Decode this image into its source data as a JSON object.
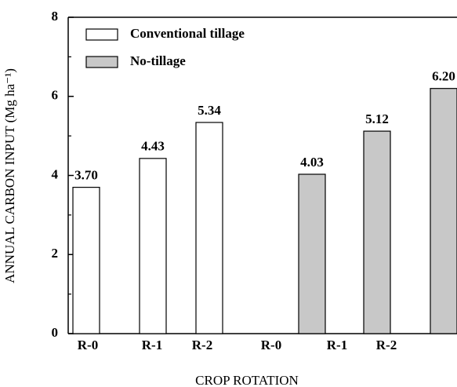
{
  "chart_data": {
    "type": "bar",
    "ylabel": "ANNUAL CARBON INPUT (Mg ha⁻¹)",
    "xlabel": "CROP ROTATION",
    "categories": [
      "R-0",
      "R-1",
      "R-2",
      "R-0",
      "R-1",
      "R-2"
    ],
    "series": [
      {
        "name": "Conventional tillage",
        "color": "#ffffff",
        "values": [
          3.7,
          4.43,
          5.34,
          null,
          null,
          null
        ],
        "value_labels": [
          "3.70",
          "4.43",
          "5.34",
          null,
          null,
          null
        ]
      },
      {
        "name": "No-tillage",
        "color": "#c8c8c8",
        "values": [
          null,
          null,
          null,
          4.03,
          5.12,
          6.2
        ],
        "value_labels": [
          null,
          null,
          null,
          "4.03",
          "5.12",
          "6.20"
        ]
      }
    ],
    "ylim": [
      0,
      8
    ],
    "yticks": [
      0,
      2,
      4,
      6,
      8
    ],
    "yminorticks": [
      1,
      3,
      5,
      7
    ]
  }
}
